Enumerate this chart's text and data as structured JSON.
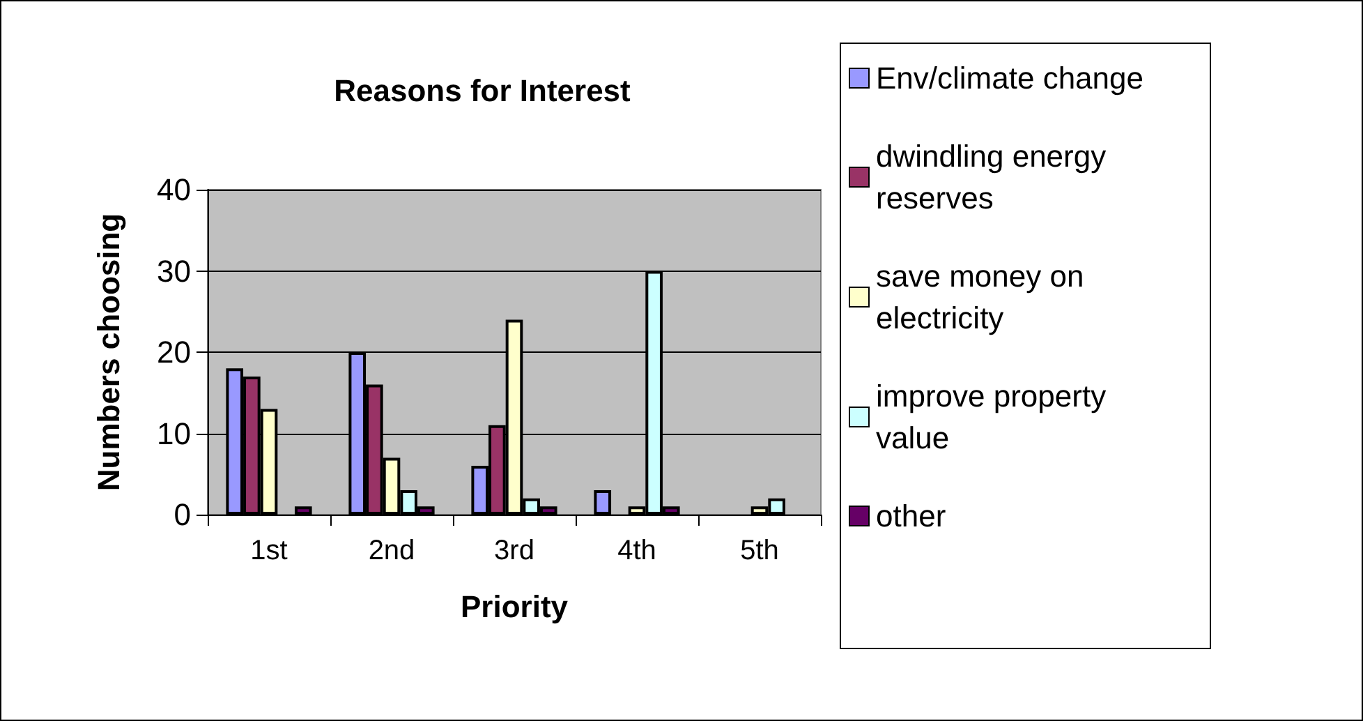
{
  "chart_data": {
    "type": "bar",
    "title": "Reasons for Interest",
    "xlabel": "Priority",
    "ylabel": "Numbers choosing",
    "categories": [
      "1st",
      "2nd",
      "3rd",
      "4th",
      "5th"
    ],
    "series": [
      {
        "name": "Env/climate change",
        "color": "#9999ff",
        "values": [
          18,
          20,
          6,
          3,
          0
        ]
      },
      {
        "name": "dwindling energy reserves",
        "color": "#993366",
        "values": [
          17,
          16,
          11,
          0,
          0
        ]
      },
      {
        "name": "save money on electricity",
        "color": "#ffffcc",
        "values": [
          13,
          7,
          24,
          1,
          1
        ]
      },
      {
        "name": "improve property value",
        "color": "#ccffff",
        "values": [
          0,
          3,
          2,
          30,
          2
        ]
      },
      {
        "name": "other",
        "color": "#660066",
        "values": [
          1,
          1,
          1,
          1,
          0
        ]
      }
    ],
    "ylim": [
      0,
      40
    ],
    "yticks": [
      0,
      10,
      20,
      30,
      40
    ],
    "grid": "y",
    "legend": "right"
  }
}
